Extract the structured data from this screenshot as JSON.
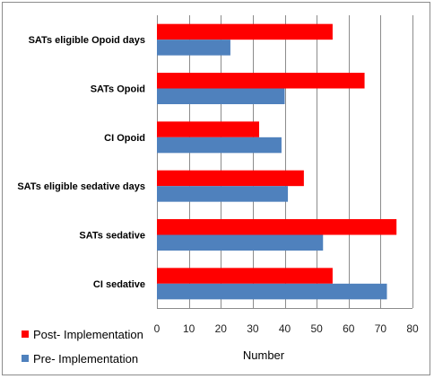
{
  "chart_data": {
    "type": "bar",
    "orientation": "horizontal",
    "categories": [
      "SATs eligible  Opoid days",
      "SATs Opoid",
      "CI Opoid",
      "SATs eligible sedative days",
      "SATs sedative",
      "CI sedative"
    ],
    "series": [
      {
        "name": "Post- Implementation",
        "color": "#ff0000",
        "values": [
          55,
          65,
          32,
          46,
          75,
          55
        ]
      },
      {
        "name": "Pre- Implementation",
        "color": "#4f81bd",
        "values": [
          23,
          40,
          39,
          41,
          52,
          72
        ]
      }
    ],
    "xlabel": "Number",
    "xlim": [
      0,
      80
    ],
    "xticks": [
      0,
      10,
      20,
      30,
      40,
      50,
      60,
      70,
      80
    ],
    "grid": true,
    "legend_position": "bottom-left"
  }
}
